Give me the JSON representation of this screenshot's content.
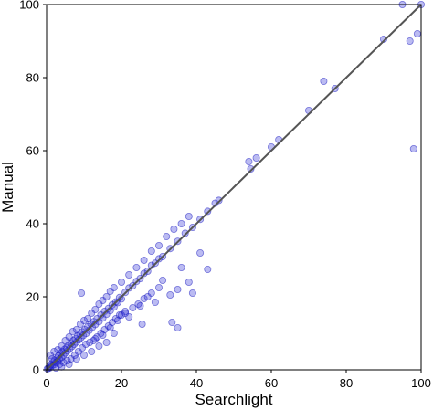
{
  "chart_data": {
    "type": "scatter",
    "title": "",
    "xlabel": "Searchlight",
    "ylabel": "Manual",
    "xlim": [
      0,
      100
    ],
    "ylim": [
      0,
      100
    ],
    "x_ticks": [
      "0",
      "20",
      "40",
      "60",
      "80",
      "100"
    ],
    "y_ticks": [
      "0",
      "20",
      "40",
      "60",
      "80",
      "100"
    ],
    "identity_line": {
      "from": [
        0,
        0
      ],
      "to": [
        100,
        100
      ],
      "color": "#555555"
    },
    "point_color": "#2a2ad8",
    "grid": false,
    "legend": "none",
    "series": [
      {
        "points": [
          [
            0.2,
            0.3
          ],
          [
            0.5,
            0.4
          ],
          [
            0.8,
            1.0
          ],
          [
            1.0,
            0.6
          ],
          [
            1.2,
            1.5
          ],
          [
            1.5,
            1.2
          ],
          [
            1.8,
            2.2
          ],
          [
            2.0,
            1.4
          ],
          [
            2.2,
            2.6
          ],
          [
            2.5,
            2.0
          ],
          [
            2.8,
            3.2
          ],
          [
            3.0,
            2.4
          ],
          [
            3.2,
            3.8
          ],
          [
            3.5,
            3.0
          ],
          [
            3.8,
            4.5
          ],
          [
            4.0,
            3.4
          ],
          [
            4.2,
            5.0
          ],
          [
            4.5,
            4.0
          ],
          [
            4.8,
            5.6
          ],
          [
            5.0,
            4.6
          ],
          [
            5.3,
            6.0
          ],
          [
            5.6,
            5.2
          ],
          [
            5.9,
            6.8
          ],
          [
            6.2,
            5.8
          ],
          [
            6.5,
            7.2
          ],
          [
            6.8,
            6.4
          ],
          [
            7.1,
            8.0
          ],
          [
            7.4,
            7.0
          ],
          [
            7.7,
            8.5
          ],
          [
            8.0,
            7.6
          ],
          [
            8.3,
            9.2
          ],
          [
            8.6,
            8.2
          ],
          [
            8.9,
            9.8
          ],
          [
            9.2,
            8.8
          ],
          [
            9.5,
            10.4
          ],
          [
            9.8,
            9.4
          ],
          [
            10.2,
            11.0
          ],
          [
            10.6,
            10.0
          ],
          [
            11.0,
            11.8
          ],
          [
            11.4,
            10.8
          ],
          [
            11.8,
            12.6
          ],
          [
            12.2,
            11.6
          ],
          [
            12.6,
            13.2
          ],
          [
            13.0,
            12.4
          ],
          [
            13.5,
            14.0
          ],
          [
            14.0,
            13.2
          ],
          [
            14.5,
            15.0
          ],
          [
            15.0,
            14.2
          ],
          [
            15.5,
            16.0
          ],
          [
            16.0,
            15.2
          ],
          [
            16.5,
            16.8
          ],
          [
            17.0,
            16.2
          ],
          [
            17.5,
            17.8
          ],
          [
            18.0,
            17.2
          ],
          [
            18.5,
            18.6
          ],
          [
            19.0,
            18.4
          ],
          [
            19.5,
            19.8
          ],
          [
            20.0,
            19.4
          ],
          [
            21.0,
            21.2
          ],
          [
            22.0,
            22.4
          ],
          [
            23.0,
            23.0
          ],
          [
            24.0,
            24.2
          ],
          [
            25.0,
            25.0
          ],
          [
            26.0,
            26.4
          ],
          [
            27.0,
            27.0
          ],
          [
            28.0,
            28.6
          ],
          [
            29.0,
            29.2
          ],
          [
            30.0,
            30.4
          ],
          [
            31.0,
            31.0
          ],
          [
            33.0,
            33.2
          ],
          [
            35.0,
            35.2
          ],
          [
            37.0,
            37.4
          ],
          [
            39.0,
            39.0
          ],
          [
            41.0,
            41.2
          ],
          [
            43.0,
            43.4
          ],
          [
            45.0,
            45.6
          ],
          [
            46.0,
            46.4
          ],
          [
            1.0,
            4.0
          ],
          [
            1.5,
            3.0
          ],
          [
            2.0,
            5.0
          ],
          [
            3.0,
            5.5
          ],
          [
            4.0,
            6.5
          ],
          [
            5.0,
            8.0
          ],
          [
            6.0,
            9.0
          ],
          [
            7.0,
            10.5
          ],
          [
            8.0,
            11.0
          ],
          [
            9.0,
            12.5
          ],
          [
            10.0,
            13.5
          ],
          [
            11.0,
            14.0
          ],
          [
            12.0,
            15.5
          ],
          [
            13.0,
            16.5
          ],
          [
            14.0,
            18.0
          ],
          [
            15.0,
            19.0
          ],
          [
            16.0,
            20.0
          ],
          [
            17.0,
            21.5
          ],
          [
            18.0,
            22.5
          ],
          [
            20.0,
            24.0
          ],
          [
            22.0,
            26.0
          ],
          [
            24.0,
            28.0
          ],
          [
            26.0,
            30.0
          ],
          [
            28.0,
            32.5
          ],
          [
            30.0,
            34.0
          ],
          [
            32.0,
            36.5
          ],
          [
            34.0,
            38.5
          ],
          [
            36.0,
            40.0
          ],
          [
            38.0,
            42.0
          ],
          [
            9.3,
            21.0
          ],
          [
            2.5,
            0.5
          ],
          [
            3.5,
            1.5
          ],
          [
            4.5,
            2.0
          ],
          [
            5.5,
            2.5
          ],
          [
            6.5,
            3.0
          ],
          [
            7.5,
            4.0
          ],
          [
            8.5,
            5.0
          ],
          [
            9.5,
            6.0
          ],
          [
            10.5,
            7.0
          ],
          [
            11.5,
            7.5
          ],
          [
            12.5,
            8.0
          ],
          [
            13.5,
            9.0
          ],
          [
            14.5,
            10.0
          ],
          [
            15.5,
            11.0
          ],
          [
            16.5,
            12.0
          ],
          [
            17.5,
            13.0
          ],
          [
            18.5,
            14.0
          ],
          [
            19.5,
            15.0
          ],
          [
            21.0,
            16.0
          ],
          [
            22.0,
            14.5
          ],
          [
            23.0,
            17.0
          ],
          [
            24.5,
            18.0
          ],
          [
            26.0,
            19.5
          ],
          [
            28.0,
            21.0
          ],
          [
            30.0,
            22.5
          ],
          [
            29.0,
            18.5
          ],
          [
            33.0,
            20.5
          ],
          [
            35.0,
            22.0
          ],
          [
            38.0,
            24.0
          ],
          [
            39.0,
            21.0
          ],
          [
            43.0,
            27.5
          ],
          [
            33.5,
            13.0
          ],
          [
            35.0,
            11.5
          ],
          [
            25.5,
            12.5
          ],
          [
            20.0,
            15.0
          ],
          [
            18.0,
            10.0
          ],
          [
            16.0,
            7.5
          ],
          [
            14.0,
            6.5
          ],
          [
            12.0,
            5.0
          ],
          [
            10.0,
            4.0
          ],
          [
            8.0,
            3.0
          ],
          [
            6.0,
            1.5
          ],
          [
            4.0,
            0.8
          ],
          [
            13.0,
            8.5
          ],
          [
            15.0,
            9.5
          ],
          [
            17.0,
            11.5
          ],
          [
            19.0,
            13.5
          ],
          [
            21.0,
            15.5
          ],
          [
            25.0,
            17.5
          ],
          [
            27.0,
            20.0
          ],
          [
            31.0,
            24.5
          ],
          [
            36.0,
            28.0
          ],
          [
            41.0,
            32.0
          ],
          [
            54.0,
            57.0
          ],
          [
            54.5,
            55.0
          ],
          [
            56.0,
            58.0
          ],
          [
            60.0,
            61.0
          ],
          [
            62.0,
            63.0
          ],
          [
            70.0,
            71.0
          ],
          [
            74.0,
            79.0
          ],
          [
            77.0,
            77.0
          ],
          [
            90.0,
            90.5
          ],
          [
            97.0,
            90.0
          ],
          [
            99.0,
            92.0
          ],
          [
            98.0,
            60.5
          ],
          [
            95.0,
            100.0
          ],
          [
            100.0,
            100.0
          ]
        ]
      }
    ]
  }
}
